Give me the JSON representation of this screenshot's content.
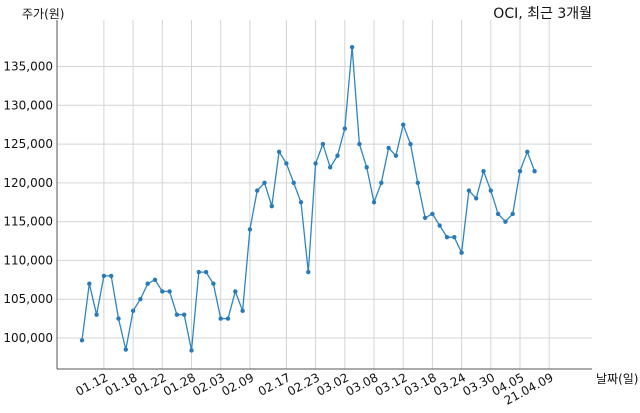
{
  "chart_data": {
    "type": "line",
    "title": "OCI, 최근 3개월",
    "ylabel": "주가(원)",
    "xlabel": "날짜(일)",
    "ylim": [
      96000,
      141000
    ],
    "y_ticks": [
      100000,
      105000,
      110000,
      115000,
      120000,
      125000,
      130000,
      135000
    ],
    "y_tick_labels": [
      "100,000",
      "105,000",
      "110,000",
      "115,000",
      "120,000",
      "125,000",
      "130,000",
      "135,000"
    ],
    "x_tick_labels": [
      "01.12",
      "01.18",
      "01.22",
      "01.28",
      "02.03",
      "02.09",
      "02.17",
      "02.23",
      "03.02",
      "03.08",
      "03.12",
      "03.18",
      "03.24",
      "03.30",
      "04.05",
      "21.04.09"
    ],
    "x_tick_positions": [
      3,
      7,
      11,
      15,
      19,
      23,
      28,
      32,
      36,
      40,
      44,
      48,
      52,
      56,
      60,
      64
    ],
    "grid": true,
    "colors": {
      "line": "#2e86c1",
      "point": "#2a7ab8",
      "grid": "#d4d4d4"
    },
    "series": [
      {
        "values": [
          99700,
          107000,
          103000,
          108000,
          108000,
          102500,
          98500,
          103500,
          105000,
          107000,
          107500,
          106000,
          106000,
          103000,
          103000,
          98400,
          108500,
          108500,
          107000,
          102500,
          102500,
          106000,
          103500,
          114000,
          119000,
          120000,
          117000,
          124000,
          122500,
          120000,
          117500,
          108500,
          122500,
          125000,
          122000,
          123500,
          127000,
          137500,
          125000,
          122000,
          117500,
          120000,
          124500,
          123500,
          127500,
          125000,
          120000,
          115500,
          116000,
          114500,
          113000,
          113000,
          111000,
          119000,
          118000,
          121500,
          119000,
          116000,
          115000,
          116000,
          121500,
          124000,
          121500
        ]
      }
    ]
  }
}
